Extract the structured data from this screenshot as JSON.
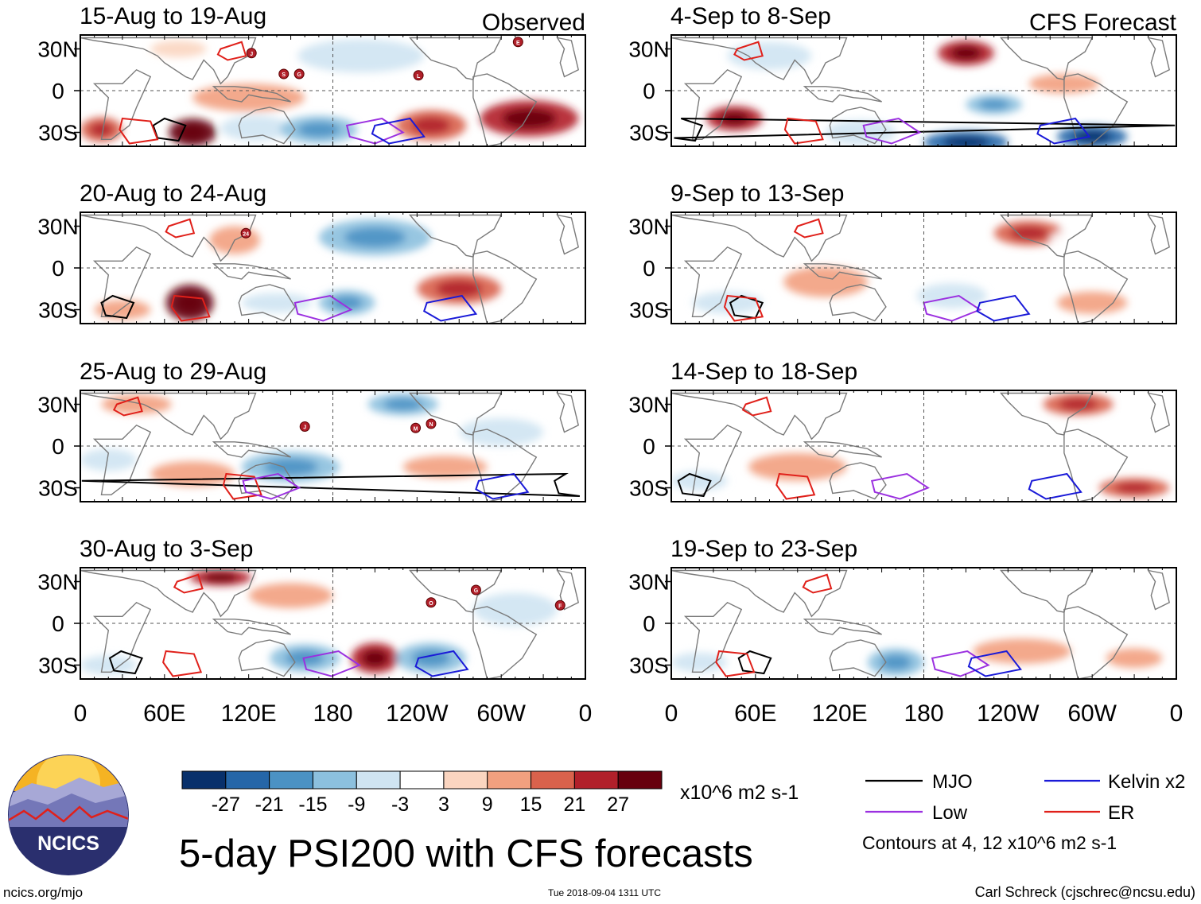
{
  "chart_data": {
    "type": "heatmap",
    "title": "5-day PSI200 with CFS forecasts",
    "variable": "PSI200",
    "units": "x10^6 m2 s-1",
    "columns": [
      {
        "label": "Observed",
        "panels": [
          {
            "period": "15-Aug to 19-Aug",
            "storms": [
              {
                "id": "J",
                "lon": 122,
                "lat": 27
              },
              {
                "id": "S",
                "lon": 145,
                "lat": 12
              },
              {
                "id": "G",
                "lon": 156,
                "lat": 12
              },
              {
                "id": "L",
                "lon": 241,
                "lat": 11
              },
              {
                "id": "E",
                "lon": 312,
                "lat": 35
              }
            ],
            "cells": [
              {
                "lon": 80,
                "lat": -30,
                "w": 34,
                "h": 20,
                "v": 27
              },
              {
                "lon": 15,
                "lat": -28,
                "w": 30,
                "h": 18,
                "v": 15
              },
              {
                "lon": 120,
                "lat": -5,
                "w": 80,
                "h": 20,
                "v": 9
              },
              {
                "lon": 125,
                "lat": -27,
                "w": 50,
                "h": 18,
                "v": -9
              },
              {
                "lon": 170,
                "lat": -28,
                "w": 55,
                "h": 20,
                "v": -15
              },
              {
                "lon": 200,
                "lat": 25,
                "w": 90,
                "h": 24,
                "v": -9
              },
              {
                "lon": 250,
                "lat": -25,
                "w": 50,
                "h": 22,
                "v": 15
              },
              {
                "lon": 320,
                "lat": -20,
                "w": 70,
                "h": 26,
                "v": 21
              },
              {
                "lon": 270,
                "lat": 28,
                "w": 40,
                "h": 16,
                "v": -3
              },
              {
                "lon": 70,
                "lat": 30,
                "w": 40,
                "h": 12,
                "v": 3
              }
            ]
          },
          {
            "period": "20-Aug to 24-Aug",
            "storms": [
              {
                "id": "24",
                "lon": 118,
                "lat": 25
              }
            ],
            "cells": [
              {
                "lon": 78,
                "lat": -25,
                "w": 34,
                "h": 26,
                "v": 27
              },
              {
                "lon": 110,
                "lat": 20,
                "w": 36,
                "h": 20,
                "v": 9
              },
              {
                "lon": 210,
                "lat": 22,
                "w": 80,
                "h": 26,
                "v": -15
              },
              {
                "lon": 190,
                "lat": -25,
                "w": 40,
                "h": 18,
                "v": -15
              },
              {
                "lon": 270,
                "lat": -15,
                "w": 60,
                "h": 22,
                "v": 15
              },
              {
                "lon": 30,
                "lat": -30,
                "w": 40,
                "h": 14,
                "v": 9
              },
              {
                "lon": 140,
                "lat": -25,
                "w": 50,
                "h": 14,
                "v": -9
              },
              {
                "lon": 330,
                "lat": 25,
                "w": 40,
                "h": 16,
                "v": -3
              }
            ]
          },
          {
            "period": "25-Aug to 29-Aug",
            "storms": [
              {
                "id": "J",
                "lon": 160,
                "lat": 14
              },
              {
                "id": "M",
                "lon": 239,
                "lat": 13
              },
              {
                "id": "N",
                "lon": 250,
                "lat": 16
              }
            ],
            "cells": [
              {
                "lon": 230,
                "lat": 30,
                "w": 50,
                "h": 16,
                "v": -15
              },
              {
                "lon": 150,
                "lat": -15,
                "w": 70,
                "h": 22,
                "v": -15
              },
              {
                "lon": 80,
                "lat": -20,
                "w": 60,
                "h": 18,
                "v": 9
              },
              {
                "lon": 40,
                "lat": 30,
                "w": 50,
                "h": 14,
                "v": 9
              },
              {
                "lon": 300,
                "lat": 10,
                "w": 60,
                "h": 20,
                "v": -9
              },
              {
                "lon": 260,
                "lat": -15,
                "w": 60,
                "h": 16,
                "v": 9
              },
              {
                "lon": 20,
                "lat": -10,
                "w": 40,
                "h": 16,
                "v": -9
              }
            ]
          },
          {
            "period": "30-Aug to 3-Sep",
            "storms": [
              {
                "id": "O",
                "lon": 250,
                "lat": 15
              },
              {
                "id": "G",
                "lon": 282,
                "lat": 24
              },
              {
                "id": "F",
                "lon": 342,
                "lat": 13
              }
            ],
            "cells": [
              {
                "lon": 100,
                "lat": 33,
                "w": 44,
                "h": 12,
                "v": 21
              },
              {
                "lon": 210,
                "lat": -25,
                "w": 34,
                "h": 22,
                "v": 21
              },
              {
                "lon": 160,
                "lat": -25,
                "w": 50,
                "h": 20,
                "v": -15
              },
              {
                "lon": 250,
                "lat": -25,
                "w": 50,
                "h": 22,
                "v": -15
              },
              {
                "lon": 20,
                "lat": -30,
                "w": 40,
                "h": 14,
                "v": -9
              },
              {
                "lon": 150,
                "lat": 20,
                "w": 60,
                "h": 18,
                "v": 9
              },
              {
                "lon": 310,
                "lat": 10,
                "w": 60,
                "h": 24,
                "v": -9
              }
            ]
          }
        ]
      },
      {
        "label": "CFS Forecast",
        "panels": [
          {
            "period": "4-Sep to 8-Sep",
            "storms": [],
            "cells": [
              {
                "lon": 45,
                "lat": -20,
                "w": 40,
                "h": 18,
                "v": 21
              },
              {
                "lon": 210,
                "lat": 27,
                "w": 40,
                "h": 18,
                "v": 21
              },
              {
                "lon": 210,
                "lat": -37,
                "w": 60,
                "h": 16,
                "v": -27
              },
              {
                "lon": 300,
                "lat": -33,
                "w": 50,
                "h": 16,
                "v": -27
              },
              {
                "lon": 135,
                "lat": -30,
                "w": 50,
                "h": 18,
                "v": -9
              },
              {
                "lon": 70,
                "lat": 25,
                "w": 60,
                "h": 20,
                "v": -9
              },
              {
                "lon": 230,
                "lat": -10,
                "w": 40,
                "h": 14,
                "v": -15
              },
              {
                "lon": 280,
                "lat": 5,
                "w": 50,
                "h": 14,
                "v": 9
              }
            ]
          },
          {
            "period": "9-Sep to 13-Sep",
            "storms": [],
            "cells": [
              {
                "lon": 255,
                "lat": 25,
                "w": 50,
                "h": 18,
                "v": 15
              },
              {
                "lon": 110,
                "lat": -10,
                "w": 60,
                "h": 22,
                "v": 9
              },
              {
                "lon": 40,
                "lat": -25,
                "w": 50,
                "h": 16,
                "v": -9
              },
              {
                "lon": 200,
                "lat": -20,
                "w": 50,
                "h": 18,
                "v": -9
              },
              {
                "lon": 300,
                "lat": -25,
                "w": 50,
                "h": 16,
                "v": 9
              },
              {
                "lon": 300,
                "lat": 20,
                "w": 60,
                "h": 20,
                "v": -3
              }
            ]
          },
          {
            "period": "14-Sep to 18-Sep",
            "storms": [],
            "cells": [
              {
                "lon": 290,
                "lat": 30,
                "w": 50,
                "h": 16,
                "v": 15
              },
              {
                "lon": 330,
                "lat": -30,
                "w": 50,
                "h": 14,
                "v": 15
              },
              {
                "lon": 90,
                "lat": -15,
                "w": 70,
                "h": 20,
                "v": 9
              },
              {
                "lon": 200,
                "lat": 5,
                "w": 80,
                "h": 18,
                "v": -3
              },
              {
                "lon": 20,
                "lat": -25,
                "w": 40,
                "h": 14,
                "v": -9
              }
            ]
          },
          {
            "period": "19-Sep to 23-Sep",
            "storms": [],
            "cells": [
              {
                "lon": 250,
                "lat": -20,
                "w": 70,
                "h": 18,
                "v": 9
              },
              {
                "lon": 160,
                "lat": -28,
                "w": 40,
                "h": 20,
                "v": -15
              },
              {
                "lon": 20,
                "lat": -28,
                "w": 40,
                "h": 14,
                "v": -9
              },
              {
                "lon": 200,
                "lat": 25,
                "w": 80,
                "h": 20,
                "v": -3
              },
              {
                "lon": 330,
                "lat": -25,
                "w": 40,
                "h": 14,
                "v": 9
              }
            ]
          }
        ]
      }
    ],
    "xaxis": {
      "range": [
        0,
        360
      ],
      "ticks": [
        {
          "lon": 0,
          "label": "0"
        },
        {
          "lon": 60,
          "label": "60E"
        },
        {
          "lon": 120,
          "label": "120E"
        },
        {
          "lon": 180,
          "label": "180"
        },
        {
          "lon": 240,
          "label": "120W"
        },
        {
          "lon": 300,
          "label": "60W"
        },
        {
          "lon": 360,
          "label": "0"
        }
      ]
    },
    "yaxis": {
      "range": [
        -40,
        40
      ],
      "ticks": [
        {
          "lat": 30,
          "label": "30N"
        },
        {
          "lat": 0,
          "label": "0"
        },
        {
          "lat": -30,
          "label": "30S"
        }
      ]
    },
    "colorbar": {
      "levels": [
        -27,
        -21,
        -15,
        -9,
        -3,
        3,
        9,
        15,
        21,
        27
      ],
      "labels": [
        "-27",
        "-21",
        "-15",
        "-9",
        "-3",
        "3",
        "9",
        "15",
        "21",
        "27"
      ],
      "colors": [
        "#08306b",
        "#2566a8",
        "#4b92c4",
        "#8cc0de",
        "#cfe4f2",
        "#ffffff",
        "#fbd5c0",
        "#f2a07f",
        "#d9624c",
        "#b1202a",
        "#67000d"
      ]
    },
    "legend": {
      "items": [
        {
          "label": "MJO",
          "color": "#000000"
        },
        {
          "label": "Kelvin x2",
          "color": "#1a1ad8"
        },
        {
          "label": "Low",
          "color": "#9b30e0"
        },
        {
          "label": "ER",
          "color": "#e0201a"
        }
      ],
      "note": "Contours at 4, 12 x10^6 m2 s-1"
    }
  },
  "logo": {
    "text": "NCICS"
  },
  "footer": {
    "left": "ncics.org/mjo",
    "center": "Tue 2018-09-04 1311 UTC",
    "right": "Carl Schreck (cjschrec@ncsu.edu)"
  }
}
